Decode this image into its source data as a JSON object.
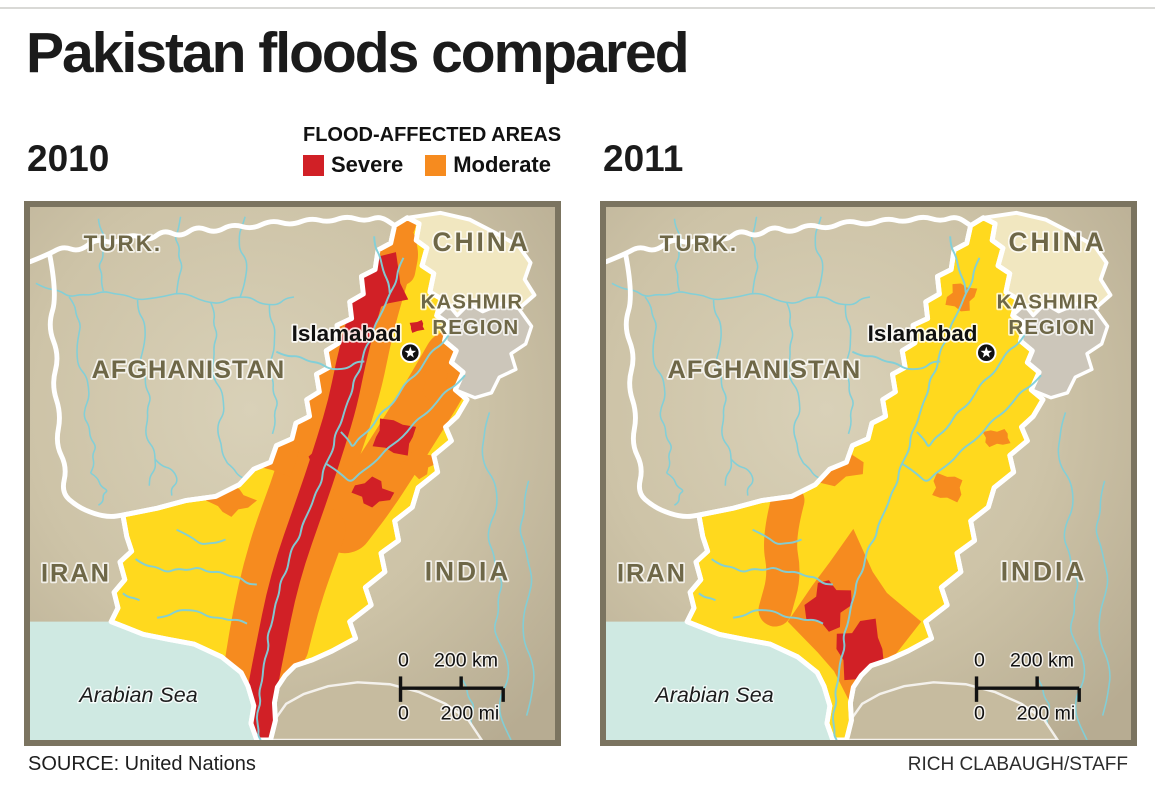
{
  "title": "Pakistan floods compared",
  "legend": {
    "title": "FLOOD-AFFECTED AREAS",
    "items": [
      {
        "label": "Severe",
        "color": "#d12026"
      },
      {
        "label": "Moderate",
        "color": "#f68b1f"
      }
    ]
  },
  "maps": [
    {
      "year": "2010"
    },
    {
      "year": "2011"
    }
  ],
  "map_labels": {
    "turkmenistan": "TURK.",
    "china": "CHINA",
    "kashmir_line1": "KASHMIR",
    "kashmir_line2": "REGION",
    "afghanistan": "AFGHANISTAN",
    "iran": "IRAN",
    "india": "INDIA",
    "capital": "Islamabad",
    "sea": "Arabian Sea"
  },
  "scale_bar": {
    "zero_km": "0",
    "km": "200 km",
    "zero_mi": "0",
    "mi": "200 mi"
  },
  "source": "SOURCE: United Nations",
  "credit": "RICH CLABAUGH/STAFF",
  "colors": {
    "severe": "#d12026",
    "moderate": "#f68b1f",
    "pakistan": "#ffd91e",
    "sea": "#cfe9e2",
    "river": "#7fd0da",
    "kashmir_cream": "#f1e7c0",
    "kashmir_gray": "#ccc6ba",
    "land_edge": "#b7ac92",
    "land_mid": "#cdc3a7",
    "land_light": "#d9d1b8",
    "india_coast": "#c6bb9f",
    "frame": "#7b7460",
    "label_olive": "#6e6747"
  }
}
